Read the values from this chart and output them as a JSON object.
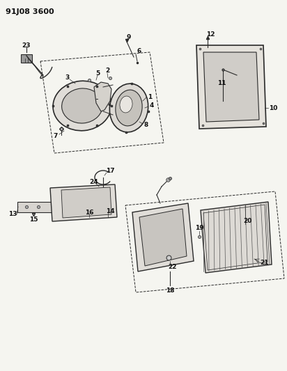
{
  "title": "91J08 3600",
  "bg_color": "#f5f5f0",
  "line_color": "#2a2a2a",
  "title_fontsize": 8,
  "label_fontsize": 6.5,
  "fig_width": 4.12,
  "fig_height": 5.33,
  "dpi": 100
}
